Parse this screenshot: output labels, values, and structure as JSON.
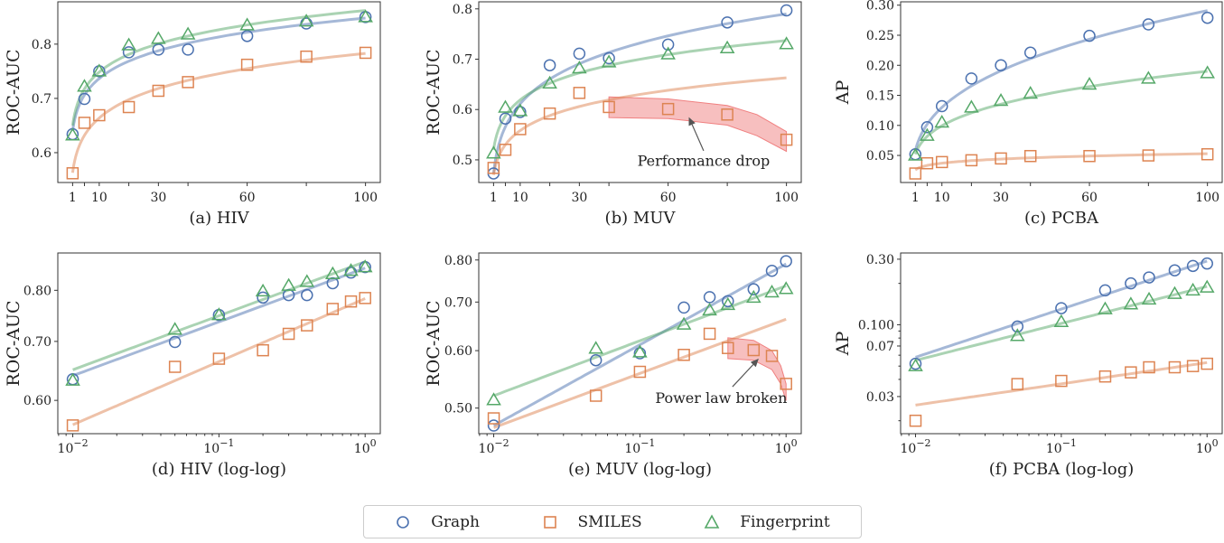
{
  "colors": {
    "Graph": "#4c72b0",
    "SMILES": "#dd8452",
    "Fingerprint": "#55a868",
    "band": "#f08080",
    "annotation": "#555555"
  },
  "legend": {
    "items": [
      {
        "label": "Graph",
        "marker": "circle"
      },
      {
        "label": "SMILES",
        "marker": "square"
      },
      {
        "label": "Fingerprint",
        "marker": "triangle"
      }
    ],
    "placement": "bottom-center"
  },
  "chart_data": [
    {
      "type": "scatter",
      "title": "(a) HIV",
      "ylabel": "ROC-AUC",
      "xlabel": "",
      "xscale": "linear",
      "yscale": "linear",
      "xlim": [
        -4,
        105
      ],
      "ylim": [
        0.545,
        0.878
      ],
      "xticks": [
        1,
        5,
        10,
        20,
        30,
        40,
        60,
        80,
        100
      ],
      "xticklabels": [
        "1",
        "",
        "10",
        "",
        "30",
        "",
        "60",
        "",
        "100"
      ],
      "yticks": [
        0.6,
        0.7,
        0.8
      ],
      "yticklabels": [
        "0.6",
        "0.7",
        "0.8"
      ],
      "x": [
        1,
        5,
        10,
        20,
        30,
        40,
        60,
        80,
        100
      ],
      "series": [
        {
          "name": "Graph",
          "marker": "circle",
          "values": [
            0.634,
            0.699,
            0.75,
            0.785,
            0.79,
            0.79,
            0.815,
            0.838,
            0.85
          ],
          "fit": [
            0.64,
            0.848
          ]
        },
        {
          "name": "SMILES",
          "marker": "square",
          "values": [
            0.562,
            0.655,
            0.669,
            0.684,
            0.714,
            0.73,
            0.762,
            0.777,
            0.784
          ],
          "fit": [
            0.563,
            0.783
          ]
        },
        {
          "name": "Fingerprint",
          "marker": "triangle",
          "values": [
            0.632,
            0.722,
            0.75,
            0.798,
            0.81,
            0.818,
            0.835,
            0.842,
            0.85
          ],
          "fit": [
            0.65,
            0.862
          ]
        }
      ]
    },
    {
      "type": "scatter",
      "title": "(b) MUV",
      "ylabel": "ROC-AUC",
      "xlabel": "",
      "xscale": "linear",
      "yscale": "linear",
      "xlim": [
        -4,
        105
      ],
      "ylim": [
        0.455,
        0.814
      ],
      "xticks": [
        1,
        5,
        10,
        20,
        30,
        40,
        60,
        80,
        100
      ],
      "xticklabels": [
        "1",
        "",
        "10",
        "",
        "30",
        "",
        "60",
        "",
        "100"
      ],
      "yticks": [
        0.5,
        0.6,
        0.7,
        0.8
      ],
      "yticklabels": [
        "0.5",
        "0.6",
        "0.7",
        "0.8"
      ],
      "x": [
        1,
        5,
        10,
        20,
        30,
        40,
        60,
        80,
        100
      ],
      "series": [
        {
          "name": "Graph",
          "marker": "circle",
          "values": [
            0.473,
            0.582,
            0.595,
            0.688,
            0.711,
            0.702,
            0.729,
            0.773,
            0.797
          ],
          "fit": [
            0.473,
            0.79
          ]
        },
        {
          "name": "SMILES",
          "marker": "square",
          "values": [
            0.484,
            0.52,
            0.561,
            0.592,
            0.633,
            0.605,
            0.601,
            0.59,
            0.54
          ],
          "fit": [
            0.47,
            0.663
          ]
        },
        {
          "name": "Fingerprint",
          "marker": "triangle",
          "values": [
            0.513,
            0.604,
            0.597,
            0.652,
            0.682,
            0.694,
            0.71,
            0.722,
            0.73
          ],
          "fit": [
            0.52,
            0.737
          ]
        }
      ],
      "annotation": {
        "text": "Performance drop",
        "text_at": [
          72,
          0.488
        ],
        "arrow_from": [
          72,
          0.518
        ],
        "arrow_to": [
          67,
          0.585
        ],
        "band_upper": [
          [
            40,
            0.625
          ],
          [
            60,
            0.621
          ],
          [
            80,
            0.608
          ],
          [
            90,
            0.59
          ],
          [
            100,
            0.556
          ]
        ],
        "band_lower": [
          [
            40,
            0.584
          ],
          [
            60,
            0.582
          ],
          [
            80,
            0.569
          ],
          [
            90,
            0.548
          ],
          [
            100,
            0.517
          ]
        ]
      }
    },
    {
      "type": "scatter",
      "title": "(c) PCBA",
      "ylabel": "AP",
      "xlabel": "",
      "xscale": "linear",
      "yscale": "linear",
      "xlim": [
        -4,
        105
      ],
      "ylim": [
        0.005,
        0.3056
      ],
      "xticks": [
        1,
        5,
        10,
        20,
        30,
        40,
        60,
        80,
        100
      ],
      "xticklabels": [
        "1",
        "",
        "10",
        "",
        "30",
        "",
        "60",
        "",
        "100"
      ],
      "yticks": [
        0.05,
        0.1,
        0.15,
        0.2,
        0.25,
        0.3
      ],
      "yticklabels": [
        "0.05",
        "0.10",
        "0.15",
        "0.20",
        "0.25",
        "0.30"
      ],
      "x": [
        1,
        5,
        10,
        20,
        30,
        40,
        60,
        80,
        100
      ],
      "series": [
        {
          "name": "Graph",
          "marker": "circle",
          "values": [
            0.052,
            0.097,
            0.132,
            0.178,
            0.2,
            0.221,
            0.249,
            0.268,
            0.279
          ],
          "fit": [
            0.058,
            0.291
          ]
        },
        {
          "name": "SMILES",
          "marker": "square",
          "values": [
            0.02,
            0.037,
            0.039,
            0.042,
            0.045,
            0.049,
            0.049,
            0.05,
            0.052
          ],
          "fit": [
            0.026,
            0.053
          ]
        },
        {
          "name": "Fingerprint",
          "marker": "triangle",
          "values": [
            0.05,
            0.083,
            0.105,
            0.13,
            0.141,
            0.153,
            0.168,
            0.178,
            0.187
          ],
          "fit": [
            0.052,
            0.19
          ]
        }
      ]
    },
    {
      "type": "scatter",
      "title": "(d) HIV (log-log)",
      "ylabel": "ROC-AUC",
      "xlabel": "",
      "xscale": "log",
      "yscale": "log",
      "xlim": [
        0.0079,
        1.27
      ],
      "ylim": [
        0.55,
        0.882
      ],
      "xticks": [
        0.01,
        0.1,
        1
      ],
      "xticklabels": [
        "10^-2",
        "10^-1",
        "10^0"
      ],
      "yticks": [
        0.6,
        0.7,
        0.8
      ],
      "yticklabels": [
        "0.60",
        "0.70",
        "0.80"
      ],
      "x": [
        0.01,
        0.05,
        0.1,
        0.2,
        0.3,
        0.4,
        0.6,
        0.8,
        1.0
      ],
      "series": [
        {
          "name": "Graph",
          "marker": "circle",
          "values": [
            0.634,
            0.699,
            0.75,
            0.785,
            0.79,
            0.79,
            0.815,
            0.838,
            0.85
          ],
          "fit": [
            0.64,
            0.848
          ]
        },
        {
          "name": "SMILES",
          "marker": "square",
          "values": [
            0.562,
            0.655,
            0.669,
            0.684,
            0.714,
            0.73,
            0.762,
            0.777,
            0.784
          ],
          "fit": [
            0.563,
            0.783
          ]
        },
        {
          "name": "Fingerprint",
          "marker": "triangle",
          "values": [
            0.632,
            0.722,
            0.75,
            0.798,
            0.81,
            0.818,
            0.835,
            0.842,
            0.85
          ],
          "fit": [
            0.65,
            0.862
          ]
        }
      ]
    },
    {
      "type": "scatter",
      "title": "(e) MUV (log-log)",
      "ylabel": "ROC-AUC",
      "xlabel": "",
      "xscale": "log",
      "yscale": "log",
      "xlim": [
        0.0079,
        1.27
      ],
      "ylim": [
        0.461,
        0.818
      ],
      "xticks": [
        0.01,
        0.1,
        1
      ],
      "xticklabels": [
        "10^-2",
        "10^-1",
        "10^0"
      ],
      "yticks": [
        0.5,
        0.6,
        0.7,
        0.8
      ],
      "yticklabels": [
        "0.50",
        "0.60",
        "0.70",
        "0.80"
      ],
      "x": [
        0.01,
        0.05,
        0.1,
        0.2,
        0.3,
        0.4,
        0.6,
        0.8,
        1.0
      ],
      "series": [
        {
          "name": "Graph",
          "marker": "circle",
          "values": [
            0.473,
            0.582,
            0.595,
            0.688,
            0.711,
            0.702,
            0.729,
            0.773,
            0.797
          ],
          "fit": [
            0.473,
            0.79
          ]
        },
        {
          "name": "SMILES",
          "marker": "square",
          "values": [
            0.484,
            0.52,
            0.561,
            0.592,
            0.633,
            0.605,
            0.601,
            0.59,
            0.54
          ],
          "fit": [
            0.47,
            0.663
          ]
        },
        {
          "name": "Fingerprint",
          "marker": "triangle",
          "values": [
            0.513,
            0.604,
            0.597,
            0.652,
            0.682,
            0.694,
            0.71,
            0.722,
            0.73
          ],
          "fit": [
            0.52,
            0.737
          ]
        }
      ],
      "annotation": {
        "text": "Power law broken",
        "text_at": [
          0.36,
          0.508
        ],
        "arrow_from": [
          0.43,
          0.535
        ],
        "arrow_to": [
          0.65,
          0.585
        ],
        "band_upper": [
          [
            0.4,
            0.625
          ],
          [
            0.6,
            0.62
          ],
          [
            0.8,
            0.6
          ],
          [
            0.92,
            0.572
          ],
          [
            1.0,
            0.54
          ]
        ],
        "band_lower": [
          [
            0.4,
            0.585
          ],
          [
            0.6,
            0.582
          ],
          [
            0.8,
            0.565
          ],
          [
            0.92,
            0.54
          ],
          [
            1.0,
            0.512
          ]
        ]
      }
    },
    {
      "type": "scatter",
      "title": "(f) PCBA (log-log)",
      "ylabel": "AP",
      "xlabel": "",
      "xscale": "log",
      "yscale": "log",
      "xlim": [
        0.0079,
        1.27
      ],
      "ylim": [
        0.0161,
        0.333
      ],
      "xticks": [
        0.01,
        0.1,
        1
      ],
      "xticklabels": [
        "10^-2",
        "10^-1",
        "10^0"
      ],
      "yticks": [
        0.03,
        0.07,
        0.1,
        0.3
      ],
      "yticklabels": [
        "0.03",
        "0.07",
        "0.100",
        "0.30"
      ],
      "x": [
        0.01,
        0.05,
        0.1,
        0.2,
        0.3,
        0.4,
        0.6,
        0.8,
        1.0
      ],
      "series": [
        {
          "name": "Graph",
          "marker": "circle",
          "values": [
            0.052,
            0.097,
            0.132,
            0.178,
            0.2,
            0.221,
            0.249,
            0.268,
            0.279
          ],
          "fit": [
            0.058,
            0.291
          ]
        },
        {
          "name": "SMILES",
          "marker": "square",
          "values": [
            0.02,
            0.037,
            0.039,
            0.042,
            0.045,
            0.049,
            0.049,
            0.05,
            0.052
          ],
          "fit": [
            0.026,
            0.053
          ]
        },
        {
          "name": "Fingerprint",
          "marker": "triangle",
          "values": [
            0.05,
            0.083,
            0.105,
            0.13,
            0.141,
            0.153,
            0.168,
            0.178,
            0.187
          ],
          "fit": [
            0.055,
            0.19
          ]
        }
      ]
    }
  ]
}
